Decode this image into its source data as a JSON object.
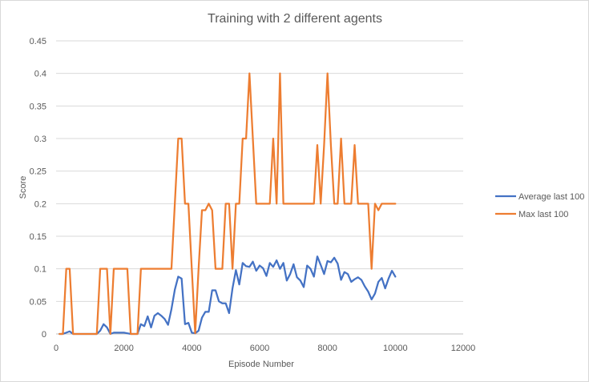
{
  "chart_data": {
    "type": "line",
    "title": "Training with 2 different agents",
    "xlabel": "Episode Number",
    "ylabel": "Score",
    "xlim": [
      0,
      12000
    ],
    "ylim": [
      0,
      0.45
    ],
    "x_ticks": [
      "0",
      "2000",
      "4000",
      "6000",
      "8000",
      "10000",
      "12000"
    ],
    "y_ticks": [
      "0",
      "0.05",
      "0.1",
      "0.15",
      "0.2",
      "0.25",
      "0.3",
      "0.35",
      "0.4",
      "0.45"
    ],
    "grid": "horizontal",
    "legend_position": "right",
    "series": [
      {
        "name": "Average last 100",
        "color": "#4472C4",
        "points": [
          [
            100,
            0
          ],
          [
            200,
            0
          ],
          [
            300,
            0.002
          ],
          [
            400,
            0.004
          ],
          [
            500,
            0
          ],
          [
            600,
            0
          ],
          [
            800,
            0
          ],
          [
            1000,
            0
          ],
          [
            1200,
            0
          ],
          [
            1300,
            0.005
          ],
          [
            1400,
            0.015
          ],
          [
            1500,
            0.01
          ],
          [
            1600,
            0
          ],
          [
            1700,
            0.002
          ],
          [
            1800,
            0.002
          ],
          [
            1900,
            0.002
          ],
          [
            2000,
            0.002
          ],
          [
            2100,
            0.001
          ],
          [
            2200,
            0
          ],
          [
            2300,
            0
          ],
          [
            2400,
            0
          ],
          [
            2500,
            0.015
          ],
          [
            2600,
            0.012
          ],
          [
            2700,
            0.027
          ],
          [
            2800,
            0.01
          ],
          [
            2900,
            0.028
          ],
          [
            3000,
            0.032
          ],
          [
            3100,
            0.028
          ],
          [
            3200,
            0.023
          ],
          [
            3300,
            0.014
          ],
          [
            3400,
            0.038
          ],
          [
            3500,
            0.068
          ],
          [
            3600,
            0.088
          ],
          [
            3700,
            0.085
          ],
          [
            3800,
            0.015
          ],
          [
            3900,
            0.017
          ],
          [
            4000,
            0.002
          ],
          [
            4100,
            0.001
          ],
          [
            4200,
            0.005
          ],
          [
            4300,
            0.025
          ],
          [
            4400,
            0.034
          ],
          [
            4500,
            0.034
          ],
          [
            4600,
            0.067
          ],
          [
            4700,
            0.067
          ],
          [
            4800,
            0.05
          ],
          [
            4900,
            0.047
          ],
          [
            5000,
            0.047
          ],
          [
            5100,
            0.032
          ],
          [
            5200,
            0.07
          ],
          [
            5300,
            0.098
          ],
          [
            5400,
            0.076
          ],
          [
            5500,
            0.109
          ],
          [
            5600,
            0.104
          ],
          [
            5700,
            0.103
          ],
          [
            5800,
            0.111
          ],
          [
            5900,
            0.097
          ],
          [
            6000,
            0.105
          ],
          [
            6100,
            0.101
          ],
          [
            6200,
            0.089
          ],
          [
            6300,
            0.109
          ],
          [
            6400,
            0.103
          ],
          [
            6500,
            0.113
          ],
          [
            6600,
            0.1
          ],
          [
            6700,
            0.109
          ],
          [
            6800,
            0.082
          ],
          [
            6900,
            0.092
          ],
          [
            7000,
            0.107
          ],
          [
            7100,
            0.087
          ],
          [
            7200,
            0.082
          ],
          [
            7300,
            0.072
          ],
          [
            7400,
            0.105
          ],
          [
            7500,
            0.1
          ],
          [
            7600,
            0.088
          ],
          [
            7700,
            0.119
          ],
          [
            7800,
            0.106
          ],
          [
            7900,
            0.092
          ],
          [
            8000,
            0.112
          ],
          [
            8100,
            0.11
          ],
          [
            8200,
            0.117
          ],
          [
            8300,
            0.108
          ],
          [
            8400,
            0.083
          ],
          [
            8500,
            0.095
          ],
          [
            8600,
            0.092
          ],
          [
            8700,
            0.08
          ],
          [
            8800,
            0.084
          ],
          [
            8900,
            0.087
          ],
          [
            9000,
            0.083
          ],
          [
            9100,
            0.073
          ],
          [
            9200,
            0.065
          ],
          [
            9300,
            0.053
          ],
          [
            9400,
            0.062
          ],
          [
            9500,
            0.08
          ],
          [
            9600,
            0.086
          ],
          [
            9700,
            0.07
          ],
          [
            9800,
            0.085
          ],
          [
            9900,
            0.097
          ],
          [
            10000,
            0.088
          ]
        ]
      },
      {
        "name": "Max last 100",
        "color": "#ED7D31",
        "points": [
          [
            100,
            0
          ],
          [
            200,
            0
          ],
          [
            300,
            0.1
          ],
          [
            400,
            0.1
          ],
          [
            500,
            0
          ],
          [
            1200,
            0
          ],
          [
            1300,
            0.1
          ],
          [
            1500,
            0.1
          ],
          [
            1600,
            0
          ],
          [
            1700,
            0.1
          ],
          [
            2100,
            0.1
          ],
          [
            2200,
            0
          ],
          [
            2300,
            0
          ],
          [
            2400,
            0
          ],
          [
            2500,
            0.1
          ],
          [
            3400,
            0.1
          ],
          [
            3600,
            0.3
          ],
          [
            3700,
            0.3
          ],
          [
            3800,
            0.2
          ],
          [
            3900,
            0.2
          ],
          [
            4000,
            0.1
          ],
          [
            4100,
            0.001
          ],
          [
            4200,
            0.1
          ],
          [
            4300,
            0.19
          ],
          [
            4400,
            0.19
          ],
          [
            4500,
            0.2
          ],
          [
            4600,
            0.19
          ],
          [
            4700,
            0.1
          ],
          [
            4900,
            0.1
          ],
          [
            5000,
            0.2
          ],
          [
            5100,
            0.2
          ],
          [
            5200,
            0.1
          ],
          [
            5300,
            0.2
          ],
          [
            5400,
            0.2
          ],
          [
            5500,
            0.3
          ],
          [
            5600,
            0.3
          ],
          [
            5700,
            0.4
          ],
          [
            5800,
            0.3
          ],
          [
            5900,
            0.2
          ],
          [
            6300,
            0.2
          ],
          [
            6400,
            0.3
          ],
          [
            6500,
            0.2
          ],
          [
            6600,
            0.4
          ],
          [
            6700,
            0.2
          ],
          [
            7600,
            0.2
          ],
          [
            7700,
            0.29
          ],
          [
            7800,
            0.2
          ],
          [
            7900,
            0.29
          ],
          [
            8000,
            0.4
          ],
          [
            8100,
            0.29
          ],
          [
            8200,
            0.2
          ],
          [
            8300,
            0.2
          ],
          [
            8400,
            0.3
          ],
          [
            8500,
            0.2
          ],
          [
            8700,
            0.2
          ],
          [
            8800,
            0.29
          ],
          [
            8900,
            0.2
          ],
          [
            9200,
            0.2
          ],
          [
            9300,
            0.1
          ],
          [
            9400,
            0.2
          ],
          [
            9500,
            0.19
          ],
          [
            9600,
            0.2
          ],
          [
            10000,
            0.2
          ]
        ]
      }
    ]
  }
}
